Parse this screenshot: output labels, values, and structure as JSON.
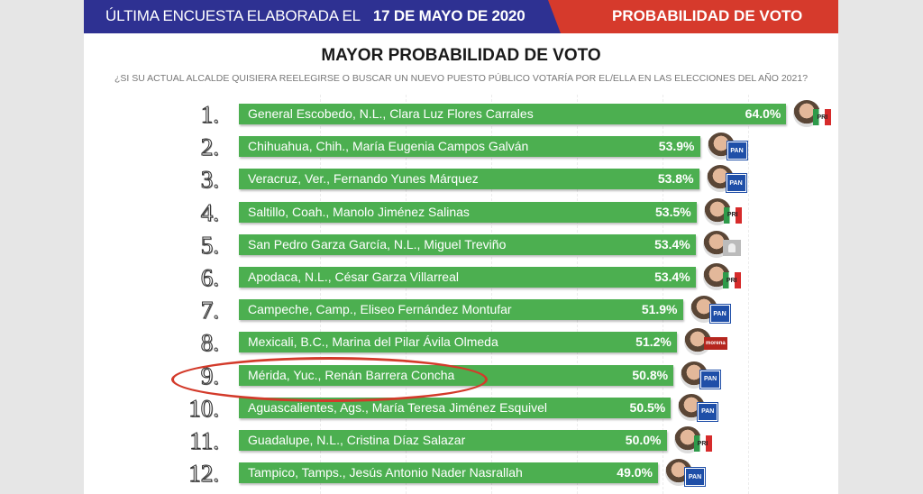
{
  "header": {
    "left_text": "ÚLTIMA ENCUESTA ELABORADA EL",
    "date": "17 DE MAYO DE 2020",
    "right_text": "PROBABILIDAD DE VOTO",
    "colors": {
      "blue": "#2e3192",
      "red": "#d63a2c"
    }
  },
  "chart_data": {
    "type": "bar",
    "orientation": "horizontal",
    "title": "MAYOR PROBABILIDAD DE VOTO",
    "subtitle": "¿SI SU ACTUAL ALCALDE QUISIERA REELEGIRSE O BUSCAR UN NUEVO PUESTO PÚBLICO VOTARÍA POR EL/ELLA EN LAS ELECCIONES DEL AÑO 2021?",
    "unit": "%",
    "bar_color": "#4caf50",
    "highlighted_rank": "9.",
    "rows": [
      {
        "rank": "1.",
        "label": "General Escobedo, N.L., Clara Luz Flores Carrales",
        "value": 64.0,
        "value_label": "64.0%",
        "party": "PRI"
      },
      {
        "rank": "2.",
        "label": "Chihuahua, Chih., María Eugenia Campos Galván",
        "value": 53.9,
        "value_label": "53.9%",
        "party": "PAN"
      },
      {
        "rank": "3.",
        "label": "Veracruz, Ver., Fernando Yunes Márquez",
        "value": 53.8,
        "value_label": "53.8%",
        "party": "PAN"
      },
      {
        "rank": "4.",
        "label": "Saltillo, Coah., Manolo Jiménez Salinas",
        "value": 53.5,
        "value_label": "53.5%",
        "party": "PRI"
      },
      {
        "rank": "5.",
        "label": "San Pedro Garza García, N.L., Miguel Treviño",
        "value": 53.4,
        "value_label": "53.4%",
        "party": "IND"
      },
      {
        "rank": "6.",
        "label": "Apodaca, N.L., César Garza Villarreal",
        "value": 53.4,
        "value_label": "53.4%",
        "party": "PRI"
      },
      {
        "rank": "7.",
        "label": "Campeche, Camp., Eliseo Fernández Montufar",
        "value": 51.9,
        "value_label": "51.9%",
        "party": "PAN"
      },
      {
        "rank": "8.",
        "label": "Mexicali, B.C., Marina del Pilar Ávila Olmeda",
        "value": 51.2,
        "value_label": "51.2%",
        "party": "MORENA"
      },
      {
        "rank": "9.",
        "label": "Mérida, Yuc., Renán Barrera Concha",
        "value": 50.8,
        "value_label": "50.8%",
        "party": "PAN"
      },
      {
        "rank": "10.",
        "label": "Aguascalientes, Ags., María Teresa Jiménez Esquivel",
        "value": 50.5,
        "value_label": "50.5%",
        "party": "PAN"
      },
      {
        "rank": "11.",
        "label": "Guadalupe, N.L., Cristina Díaz Salazar",
        "value": 50.0,
        "value_label": "50.0%",
        "party": "PRI"
      },
      {
        "rank": "12.",
        "label": "Tampico, Tamps., Jesús Antonio Nader Nasrallah",
        "value": 49.0,
        "value_label": "49.0%",
        "party": "PAN"
      }
    ]
  }
}
